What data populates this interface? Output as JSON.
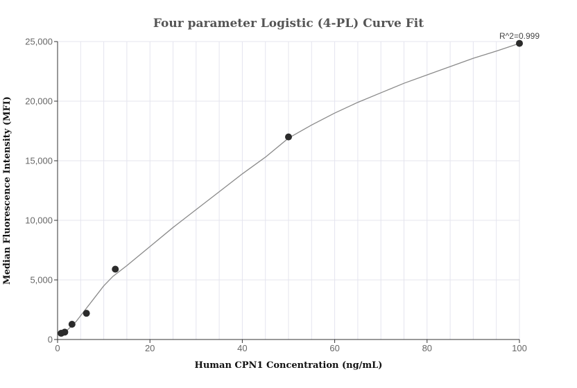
{
  "chart_data": {
    "type": "scatter",
    "title": "Four parameter Logistic (4-PL) Curve Fit",
    "xlabel": "Human CPN1 Concentration (ng/mL)",
    "ylabel": "Median Fluorescence Intensity (MFI)",
    "xlim": [
      0,
      100
    ],
    "ylim": [
      0,
      25000
    ],
    "xticks": [
      0,
      20,
      40,
      60,
      80,
      100
    ],
    "yticks": [
      0,
      5000,
      10000,
      15000,
      20000,
      25000
    ],
    "xtick_labels": [
      "0",
      "20",
      "40",
      "60",
      "80",
      "100"
    ],
    "ytick_labels": [
      "0",
      "5,000",
      "10,000",
      "15,000",
      "20,000",
      "25,000"
    ],
    "grid": true,
    "annotation": "R^2=0.999",
    "colors": {
      "points": "#2b2b2b",
      "curve": "#8a8a8a",
      "grid": "#e4e4ee"
    },
    "points": [
      {
        "x": 0.78,
        "y": 520
      },
      {
        "x": 1.56,
        "y": 620
      },
      {
        "x": 3.125,
        "y": 1280
      },
      {
        "x": 6.25,
        "y": 2200
      },
      {
        "x": 12.5,
        "y": 5900
      },
      {
        "x": 50,
        "y": 17000
      },
      {
        "x": 100,
        "y": 24850
      }
    ],
    "fit_curve": {
      "x": [
        0.78,
        2,
        4,
        6,
        8,
        10,
        12,
        15,
        20,
        25,
        30,
        35,
        40,
        45,
        50,
        55,
        60,
        65,
        70,
        75,
        80,
        85,
        90,
        95,
        100
      ],
      "y": [
        380,
        750,
        1500,
        2500,
        3500,
        4500,
        5300,
        6200,
        7800,
        9400,
        10900,
        12400,
        13900,
        15300,
        16900,
        18000,
        19000,
        19900,
        20700,
        21500,
        22200,
        22900,
        23600,
        24200,
        24850
      ]
    }
  }
}
